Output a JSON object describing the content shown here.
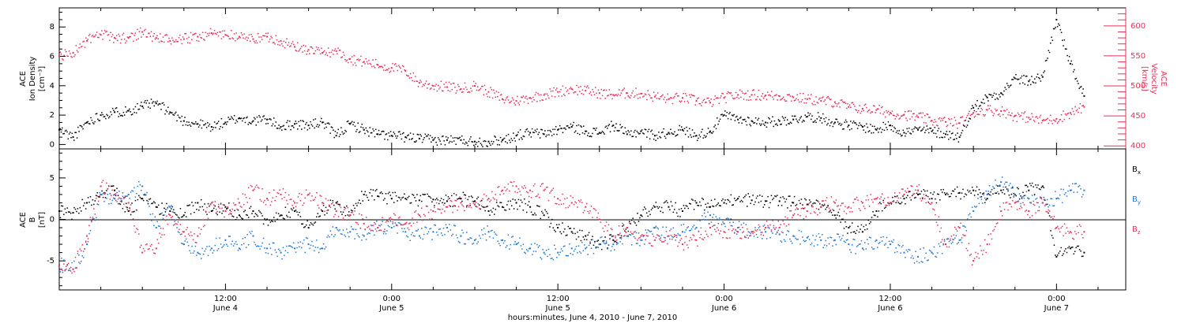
{
  "xaxis_title": "hours:minutes, June  4, 2010 - June  7, 2010",
  "time_ticks": [
    {
      "hour": 12,
      "time": "12:00",
      "day": "June 4"
    },
    {
      "hour": 24,
      "time": "0:00",
      "day": "June 5"
    },
    {
      "hour": 36,
      "time": "12:00",
      "day": "June 5"
    },
    {
      "hour": 48,
      "time": "0:00",
      "day": "June 6"
    },
    {
      "hour": 60,
      "time": "12:00",
      "day": "June 6"
    },
    {
      "hour": 72,
      "time": "0:00",
      "day": "June 7"
    }
  ],
  "colors": {
    "black": "#000000",
    "pink": "#e8305a",
    "blue": "#1f78d4"
  },
  "chart_data": [
    {
      "type": "scatter",
      "panel": "top",
      "ylabel_left": [
        "ACE",
        "Ion Density",
        "[cm⁻³]"
      ],
      "ylabel_right": [
        "ACE",
        "Velocity",
        "[km/s]"
      ],
      "xlim_hours": [
        0,
        77
      ],
      "ylim_left": [
        -0.3,
        9.3
      ],
      "yticks_left": [
        0,
        2,
        4,
        6,
        8
      ],
      "ylim_right": [
        395,
        630
      ],
      "yticks_right": [
        400,
        450,
        500,
        550,
        600
      ],
      "series": [
        {
          "axis": "left",
          "color": "#000000",
          "x": [
            0,
            1,
            2,
            3,
            4,
            5,
            6,
            7,
            8,
            9,
            10,
            11,
            12,
            13,
            14,
            15,
            16,
            17,
            18,
            19,
            20,
            21,
            22,
            23,
            24,
            25,
            26,
            27,
            28,
            29,
            30,
            31,
            32,
            33,
            34,
            35,
            36,
            37,
            38,
            39,
            40,
            41,
            42,
            43,
            44,
            45,
            46,
            47,
            48,
            49,
            50,
            51,
            52,
            53,
            54,
            55,
            56,
            57,
            58,
            59,
            60,
            61,
            62,
            63,
            64,
            65,
            66,
            67,
            68,
            69,
            70,
            71,
            72,
            73,
            74
          ],
          "y": [
            1.0,
            0.5,
            1.5,
            2.0,
            2.2,
            2.3,
            2.6,
            2.8,
            2.2,
            1.6,
            1.4,
            1.2,
            1.5,
            1.8,
            1.6,
            1.7,
            1.2,
            1.4,
            1.3,
            1.5,
            0.6,
            1.4,
            1.0,
            0.7,
            0.6,
            0.5,
            0.4,
            0.3,
            0.3,
            0.3,
            0.2,
            0.2,
            0.3,
            0.6,
            0.8,
            0.7,
            1.0,
            1.2,
            0.9,
            0.8,
            1.3,
            0.7,
            0.9,
            0.6,
            0.8,
            1.0,
            0.6,
            0.9,
            2.0,
            1.7,
            1.6,
            1.5,
            1.6,
            1.7,
            1.9,
            1.8,
            1.5,
            1.3,
            1.2,
            1.0,
            1.3,
            0.8,
            1.0,
            0.9,
            0.7,
            0.5,
            2.5,
            3.2,
            3.5,
            4.5,
            4.3,
            4.6,
            8.5,
            5.5,
            3.3
          ]
        },
        {
          "axis": "right",
          "color": "#e8305a",
          "x": [
            0,
            1,
            2,
            3,
            4,
            5,
            6,
            7,
            8,
            9,
            10,
            11,
            12,
            13,
            14,
            15,
            16,
            17,
            18,
            19,
            20,
            21,
            22,
            23,
            24,
            25,
            26,
            27,
            28,
            29,
            30,
            31,
            32,
            33,
            34,
            35,
            36,
            37,
            38,
            39,
            40,
            41,
            42,
            43,
            44,
            45,
            46,
            47,
            48,
            49,
            50,
            51,
            52,
            53,
            54,
            55,
            56,
            57,
            58,
            59,
            60,
            61,
            62,
            63,
            64,
            65,
            66,
            67,
            68,
            69,
            70,
            71,
            72,
            73,
            74
          ],
          "y": [
            550,
            555,
            575,
            585,
            580,
            580,
            590,
            580,
            575,
            578,
            582,
            588,
            585,
            582,
            578,
            582,
            575,
            565,
            560,
            555,
            558,
            545,
            540,
            535,
            530,
            525,
            505,
            500,
            498,
            495,
            500,
            490,
            478,
            475,
            480,
            485,
            490,
            495,
            492,
            488,
            485,
            488,
            487,
            482,
            478,
            480,
            475,
            472,
            480,
            485,
            485,
            484,
            483,
            481,
            478,
            475,
            473,
            465,
            462,
            460,
            455,
            452,
            448,
            442,
            440,
            438,
            455,
            460,
            458,
            450,
            447,
            442,
            445,
            455,
            465
          ]
        }
      ]
    },
    {
      "type": "scatter",
      "panel": "bottom",
      "ylabel_left": [
        "ACE",
        "B",
        "[nT]"
      ],
      "xlim_hours": [
        0,
        77
      ],
      "ylim": [
        -8.5,
        8.5
      ],
      "yticks": [
        -5,
        0,
        5
      ],
      "series": [
        {
          "name": "Bx",
          "color": "#000000",
          "x": [
            0,
            1,
            2,
            3,
            4,
            5,
            6,
            7,
            8,
            9,
            10,
            11,
            12,
            13,
            14,
            15,
            16,
            17,
            18,
            19,
            20,
            21,
            22,
            23,
            24,
            25,
            26,
            27,
            28,
            29,
            30,
            31,
            32,
            33,
            34,
            35,
            36,
            37,
            38,
            39,
            40,
            41,
            42,
            43,
            44,
            45,
            46,
            47,
            48,
            49,
            50,
            51,
            52,
            53,
            54,
            55,
            56,
            57,
            58,
            59,
            60,
            61,
            62,
            63,
            64,
            65,
            66,
            67,
            68,
            69,
            70,
            71,
            72,
            73,
            74
          ],
          "y": [
            1.0,
            0.8,
            2.0,
            3.0,
            3.5,
            1.0,
            2.5,
            1.5,
            1.0,
            0.5,
            2.0,
            1.0,
            1.5,
            0.5,
            1.0,
            0.0,
            0.5,
            1.0,
            -1.0,
            1.0,
            2.0,
            0.5,
            3.0,
            2.8,
            2.5,
            2.5,
            2.3,
            2.4,
            2.2,
            2.5,
            2.2,
            1.0,
            1.5,
            2.0,
            1.5,
            0.5,
            -1.0,
            -1.5,
            -2.0,
            -3.0,
            -2.5,
            -1.0,
            0.5,
            1.5,
            1.5,
            1.0,
            2.0,
            1.5,
            2.0,
            2.5,
            2.3,
            2.2,
            2.2,
            2.0,
            1.8,
            1.5,
            0.5,
            -1.0,
            -1.5,
            1.0,
            2.0,
            2.5,
            3.0,
            2.5,
            3.0,
            3.2,
            3.5,
            2.5,
            3.5,
            3.0,
            3.5,
            4.0,
            -4.5,
            -3.5,
            -4.0
          ]
        },
        {
          "name": "By",
          "color": "#1f78d4",
          "x": [
            0,
            1,
            2,
            3,
            4,
            5,
            6,
            7,
            8,
            9,
            10,
            11,
            12,
            13,
            14,
            15,
            16,
            17,
            18,
            19,
            20,
            21,
            22,
            23,
            24,
            25,
            26,
            27,
            28,
            29,
            30,
            31,
            32,
            33,
            34,
            35,
            36,
            37,
            38,
            39,
            40,
            41,
            42,
            43,
            44,
            45,
            46,
            47,
            48,
            49,
            50,
            51,
            52,
            53,
            54,
            55,
            56,
            57,
            58,
            59,
            60,
            61,
            62,
            63,
            64,
            65,
            66,
            67,
            68,
            69,
            70,
            71,
            72,
            73,
            74
          ],
          "y": [
            -5.5,
            -6.0,
            -3.0,
            3.0,
            2.5,
            3.0,
            4.0,
            -1.0,
            1.5,
            -3.0,
            -4.0,
            -3.5,
            -2.5,
            -3.5,
            -2.0,
            -3.5,
            -4.0,
            -3.5,
            -3.0,
            -3.5,
            -1.0,
            -1.5,
            -2.0,
            -1.0,
            -1.0,
            -1.5,
            -2.0,
            -1.5,
            -1.0,
            -2.0,
            -2.5,
            -1.5,
            -2.5,
            -3.0,
            -3.5,
            -4.0,
            -4.0,
            -3.5,
            -3.5,
            -3.0,
            -3.0,
            -2.0,
            -2.5,
            -1.0,
            -2.0,
            -1.5,
            -1.0,
            0.5,
            -0.5,
            -1.0,
            -1.5,
            -1.5,
            -1.8,
            -2.0,
            -2.2,
            -2.5,
            -2.5,
            -3.0,
            -3.5,
            -2.5,
            -3.0,
            -4.0,
            -4.5,
            -4.0,
            -3.0,
            -2.5,
            1.0,
            3.0,
            4.5,
            3.0,
            2.5,
            2.0,
            2.5,
            3.5,
            3.5
          ]
        },
        {
          "name": "Bz",
          "color": "#e8305a",
          "x": [
            0,
            1,
            2,
            3,
            4,
            5,
            6,
            7,
            8,
            9,
            10,
            11,
            12,
            13,
            14,
            15,
            16,
            17,
            18,
            19,
            20,
            21,
            22,
            23,
            24,
            25,
            26,
            27,
            28,
            29,
            30,
            31,
            32,
            33,
            34,
            35,
            36,
            37,
            38,
            39,
            40,
            41,
            42,
            43,
            44,
            45,
            46,
            47,
            48,
            49,
            50,
            51,
            52,
            53,
            54,
            55,
            56,
            57,
            58,
            59,
            60,
            61,
            62,
            63,
            64,
            65,
            66,
            67,
            68,
            69,
            70,
            71,
            72,
            73,
            74
          ],
          "y": [
            -5.5,
            -6.0,
            -2.0,
            4.0,
            3.0,
            2.0,
            -4.0,
            -3.5,
            0.5,
            -1.5,
            -2.0,
            2.0,
            1.0,
            2.0,
            3.5,
            2.5,
            3.0,
            2.0,
            3.0,
            2.0,
            1.0,
            0.5,
            -0.5,
            -1.0,
            0.0,
            -0.5,
            0.5,
            1.0,
            1.5,
            2.0,
            1.8,
            2.5,
            3.5,
            4.0,
            3.5,
            3.5,
            2.5,
            2.0,
            1.5,
            0.0,
            -2.0,
            -1.0,
            -2.0,
            -2.5,
            -2.0,
            -3.0,
            -2.5,
            -1.0,
            -1.5,
            -1.5,
            -1.5,
            -1.0,
            -1.0,
            0.5,
            1.0,
            1.5,
            2.0,
            1.5,
            2.0,
            2.5,
            2.0,
            3.0,
            3.5,
            2.0,
            -3.0,
            -1.0,
            -5.0,
            -3.0,
            1.0,
            2.0,
            1.0,
            2.0,
            -1.0,
            -1.5,
            -1.5
          ]
        }
      ]
    }
  ],
  "legend": [
    {
      "base": "B",
      "sub": "x",
      "color": "#000000"
    },
    {
      "base": "B",
      "sub": "y",
      "color": "#1f78d4"
    },
    {
      "base": "B",
      "sub": "z",
      "color": "#e8305a"
    }
  ]
}
